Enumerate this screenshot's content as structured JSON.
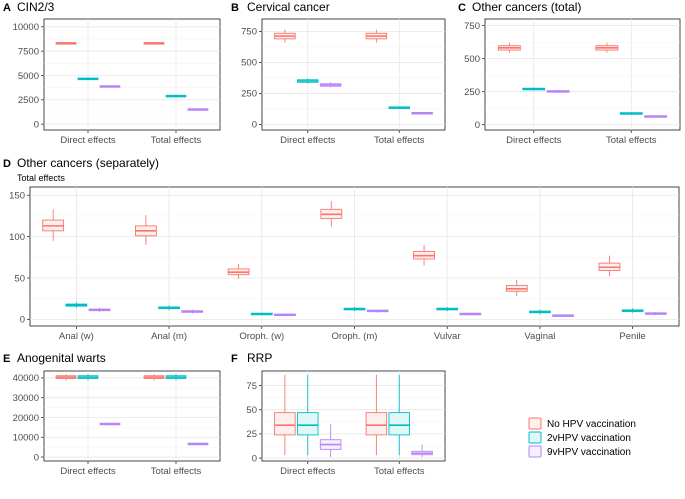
{
  "colors": {
    "no_hpv": "#F8766D",
    "v2": "#00BFC4",
    "v9": "#B784F7"
  },
  "legend": {
    "entries": [
      {
        "key": "no_hpv",
        "label": "No HPV vaccination"
      },
      {
        "key": "v2",
        "label": "2vHPV vaccination"
      },
      {
        "key": "v9",
        "label": "9vHPV vaccination"
      }
    ]
  },
  "chart_data": [
    {
      "id": "A",
      "letter": "A",
      "title": "CIN2/3",
      "subtitle": "",
      "type": "boxplot",
      "categories": [
        "Direct effects",
        "Total effects"
      ],
      "ylim": [
        -600,
        10800
      ],
      "yticks": [
        0,
        2500,
        5000,
        7500,
        10000
      ],
      "ytick_labels": [
        "0",
        "2500",
        "5000",
        "7500",
        "10000"
      ],
      "series": [
        {
          "key": "no_hpv",
          "name": "No HPV vaccination",
          "boxes": [
            {
              "min": 8220,
              "q1": 8260,
              "median": 8300,
              "q3": 8340,
              "max": 8380
            },
            {
              "min": 8220,
              "q1": 8260,
              "median": 8300,
              "q3": 8340,
              "max": 8380
            }
          ]
        },
        {
          "key": "v2",
          "name": "2vHPV vaccination",
          "boxes": [
            {
              "min": 4590,
              "q1": 4620,
              "median": 4650,
              "q3": 4680,
              "max": 4710
            },
            {
              "min": 2820,
              "q1": 2850,
              "median": 2880,
              "q3": 2910,
              "max": 2940
            }
          ]
        },
        {
          "key": "v9",
          "name": "9vHPV vaccination",
          "boxes": [
            {
              "min": 3810,
              "q1": 3840,
              "median": 3870,
              "q3": 3900,
              "max": 3930
            },
            {
              "min": 1440,
              "q1": 1470,
              "median": 1500,
              "q3": 1530,
              "max": 1560
            }
          ]
        }
      ]
    },
    {
      "id": "B",
      "letter": "B",
      "title": "Cervical cancer",
      "subtitle": "",
      "type": "boxplot",
      "categories": [
        "Direct effects",
        "Total effects"
      ],
      "ylim": [
        -45,
        850
      ],
      "yticks": [
        0,
        250,
        500,
        750
      ],
      "ytick_labels": [
        "0",
        "250",
        "500",
        "750"
      ],
      "series": [
        {
          "key": "no_hpv",
          "name": "No HPV vaccination",
          "boxes": [
            {
              "min": 660,
              "q1": 690,
              "median": 712,
              "q3": 735,
              "max": 765
            },
            {
              "min": 660,
              "q1": 690,
              "median": 712,
              "q3": 735,
              "max": 765
            }
          ]
        },
        {
          "key": "v2",
          "name": "2vHPV vaccination",
          "boxes": [
            {
              "min": 330,
              "q1": 340,
              "median": 350,
              "q3": 360,
              "max": 370
            },
            {
              "min": 125,
              "q1": 130,
              "median": 135,
              "q3": 140,
              "max": 145
            }
          ]
        },
        {
          "key": "v9",
          "name": "9vHPV vaccination",
          "boxes": [
            {
              "min": 298,
              "q1": 308,
              "median": 318,
              "q3": 328,
              "max": 338
            },
            {
              "min": 80,
              "q1": 85,
              "median": 90,
              "q3": 95,
              "max": 100
            }
          ]
        }
      ]
    },
    {
      "id": "C",
      "letter": "C",
      "title": "Other cancers (total)",
      "subtitle": "",
      "type": "boxplot",
      "categories": [
        "Direct effects",
        "Total effects"
      ],
      "ylim": [
        -40,
        800
      ],
      "yticks": [
        0,
        250,
        500,
        750
      ],
      "ytick_labels": [
        "0",
        "250",
        "500",
        "750"
      ],
      "series": [
        {
          "key": "no_hpv",
          "name": "No HPV vaccination",
          "boxes": [
            {
              "min": 545,
              "q1": 565,
              "median": 582,
              "q3": 598,
              "max": 620
            },
            {
              "min": 545,
              "q1": 565,
              "median": 582,
              "q3": 598,
              "max": 620
            }
          ]
        },
        {
          "key": "v2",
          "name": "2vHPV vaccination",
          "boxes": [
            {
              "min": 258,
              "q1": 264,
              "median": 270,
              "q3": 276,
              "max": 282
            },
            {
              "min": 75,
              "q1": 80,
              "median": 85,
              "q3": 90,
              "max": 95
            }
          ]
        },
        {
          "key": "v9",
          "name": "9vHPV vaccination",
          "boxes": [
            {
              "min": 240,
              "q1": 246,
              "median": 252,
              "q3": 258,
              "max": 264
            },
            {
              "min": 52,
              "q1": 57,
              "median": 62,
              "q3": 67,
              "max": 72
            }
          ]
        }
      ]
    },
    {
      "id": "D",
      "letter": "D",
      "title": "Other cancers (separately)",
      "subtitle": "Total effects",
      "type": "boxplot",
      "categories": [
        "Anal (w)",
        "Anal (m)",
        "Oroph. (w)",
        "Oroph. (m)",
        "Vulvar",
        "Vaginal",
        "Penile"
      ],
      "ylim": [
        -8,
        160
      ],
      "yticks": [
        0,
        50,
        100,
        150
      ],
      "ytick_labels": [
        "0",
        "50",
        "100",
        "150"
      ],
      "series": [
        {
          "key": "no_hpv",
          "name": "No HPV vaccination",
          "boxes": [
            {
              "min": 95,
              "q1": 107,
              "median": 113,
              "q3": 120,
              "max": 133
            },
            {
              "min": 90,
              "q1": 101,
              "median": 107,
              "q3": 113,
              "max": 126
            },
            {
              "min": 49,
              "q1": 54,
              "median": 57,
              "q3": 61,
              "max": 67
            },
            {
              "min": 112,
              "q1": 122,
              "median": 127,
              "q3": 133,
              "max": 143
            },
            {
              "min": 65,
              "q1": 73,
              "median": 77,
              "q3": 82,
              "max": 90
            },
            {
              "min": 28,
              "q1": 34,
              "median": 37,
              "q3": 41,
              "max": 48
            },
            {
              "min": 52,
              "q1": 59,
              "median": 63,
              "q3": 68,
              "max": 77
            }
          ]
        },
        {
          "key": "v2",
          "name": "2vHPV vaccination",
          "boxes": [
            {
              "min": 14,
              "q1": 16,
              "median": 17,
              "q3": 18.5,
              "max": 21
            },
            {
              "min": 11,
              "q1": 13,
              "median": 14,
              "q3": 15,
              "max": 17
            },
            {
              "min": 5,
              "q1": 6,
              "median": 6.5,
              "q3": 7,
              "max": 8
            },
            {
              "min": 10,
              "q1": 11.5,
              "median": 12.5,
              "q3": 13.5,
              "max": 15
            },
            {
              "min": 10,
              "q1": 11.5,
              "median": 12.5,
              "q3": 13.5,
              "max": 15
            },
            {
              "min": 6,
              "q1": 8,
              "median": 9,
              "q3": 10,
              "max": 12
            },
            {
              "min": 8,
              "q1": 9.5,
              "median": 10.5,
              "q3": 11.5,
              "max": 13.5
            }
          ]
        },
        {
          "key": "v9",
          "name": "9vHPV vaccination",
          "boxes": [
            {
              "min": 9,
              "q1": 10.5,
              "median": 11.5,
              "q3": 12.5,
              "max": 14
            },
            {
              "min": 7,
              "q1": 8.5,
              "median": 9.5,
              "q3": 10.5,
              "max": 12
            },
            {
              "min": 4,
              "q1": 5,
              "median": 5.5,
              "q3": 6,
              "max": 7
            },
            {
              "min": 8,
              "q1": 9.5,
              "median": 10,
              "q3": 11,
              "max": 12
            },
            {
              "min": 5,
              "q1": 6,
              "median": 6.5,
              "q3": 7,
              "max": 8
            },
            {
              "min": 3,
              "q1": 4,
              "median": 4.5,
              "q3": 5,
              "max": 6
            },
            {
              "min": 5,
              "q1": 6.5,
              "median": 7,
              "q3": 7.5,
              "max": 9
            }
          ]
        }
      ]
    },
    {
      "id": "E",
      "letter": "E",
      "title": "Anogenital warts",
      "subtitle": "",
      "type": "boxplot",
      "categories": [
        "Direct effects",
        "Total effects"
      ],
      "ylim": [
        -2000,
        43500
      ],
      "yticks": [
        0,
        10000,
        20000,
        30000,
        40000
      ],
      "ytick_labels": [
        "0",
        "10000",
        "20000",
        "30000",
        "40000"
      ],
      "series": [
        {
          "key": "no_hpv",
          "name": "No HPV vaccination",
          "boxes": [
            {
              "min": 38800,
              "q1": 39700,
              "median": 40400,
              "q3": 41100,
              "max": 41900
            },
            {
              "min": 38800,
              "q1": 39700,
              "median": 40400,
              "q3": 41100,
              "max": 41900
            }
          ]
        },
        {
          "key": "v2",
          "name": "2vHPV vaccination",
          "boxes": [
            {
              "min": 38800,
              "q1": 39700,
              "median": 40400,
              "q3": 41100,
              "max": 41900
            },
            {
              "min": 38800,
              "q1": 39700,
              "median": 40400,
              "q3": 41100,
              "max": 41900
            }
          ]
        },
        {
          "key": "v9",
          "name": "9vHPV vaccination",
          "boxes": [
            {
              "min": 16300,
              "q1": 16500,
              "median": 16700,
              "q3": 16900,
              "max": 17100
            },
            {
              "min": 6300,
              "q1": 6450,
              "median": 6600,
              "q3": 6750,
              "max": 6900
            }
          ]
        }
      ]
    },
    {
      "id": "F",
      "letter": "F",
      "title": "RRP",
      "subtitle": "",
      "type": "boxplot",
      "categories": [
        "Direct effects",
        "Total effects"
      ],
      "ylim": [
        -3,
        90
      ],
      "yticks": [
        0,
        25,
        50,
        75
      ],
      "ytick_labels": [
        "0",
        "25",
        "50",
        "75"
      ],
      "series": [
        {
          "key": "no_hpv",
          "name": "No HPV vaccination",
          "boxes": [
            {
              "min": 3,
              "q1": 24,
              "median": 34,
              "q3": 47,
              "max": 86
            },
            {
              "min": 3,
              "q1": 24,
              "median": 34,
              "q3": 47,
              "max": 86
            }
          ]
        },
        {
          "key": "v2",
          "name": "2vHPV vaccination",
          "boxes": [
            {
              "min": 3,
              "q1": 24,
              "median": 34,
              "q3": 47,
              "max": 86
            },
            {
              "min": 3,
              "q1": 24,
              "median": 34,
              "q3": 47,
              "max": 86
            }
          ]
        },
        {
          "key": "v9",
          "name": "9vHPV vaccination",
          "boxes": [
            {
              "min": 1,
              "q1": 9,
              "median": 14,
              "q3": 19,
              "max": 35
            },
            {
              "min": 1,
              "q1": 3.5,
              "median": 5,
              "q3": 7,
              "max": 14
            }
          ]
        }
      ]
    }
  ]
}
